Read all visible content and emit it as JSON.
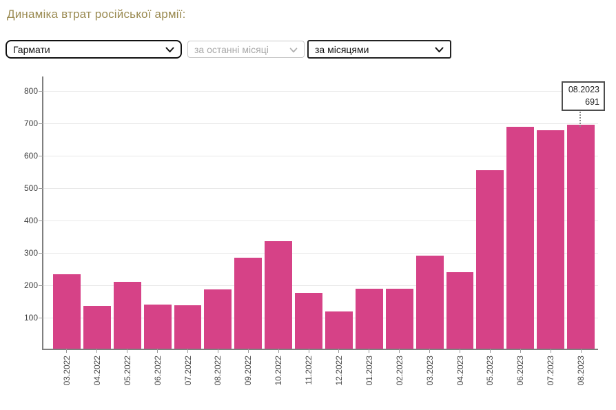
{
  "header": {
    "title": "Динаміка втрат російської армії:",
    "title_color": "#9a8a51"
  },
  "controls": {
    "category_select": {
      "value": "Гармати",
      "disabled": false
    },
    "period_select": {
      "value": "за останні місяці",
      "disabled": true
    },
    "grouping_select": {
      "value": "за місяцями",
      "disabled": false
    }
  },
  "chart_data": {
    "type": "bar",
    "title": "Динаміка втрат російської армії (Гармати, за місяцями)",
    "categories": [
      "03.2022",
      "04.2022",
      "05.2022",
      "06.2022",
      "07.2022",
      "08.2022",
      "09.2022",
      "10.2022",
      "11.2022",
      "12.2022",
      "01.2023",
      "02.2023",
      "03.2023",
      "04.2023",
      "05.2023",
      "06.2023",
      "07.2023",
      "08.2023"
    ],
    "values": [
      231,
      133,
      206,
      136,
      135,
      183,
      281,
      333,
      172,
      114,
      186,
      185,
      288,
      236,
      552,
      686,
      675,
      691
    ],
    "bar_color": "#d64287",
    "xlabel": "",
    "ylabel": "",
    "ylim": [
      0,
      845
    ],
    "yticks": [
      100,
      200,
      300,
      400,
      500,
      600,
      700,
      800
    ],
    "grid": true,
    "legend": false,
    "tooltip": {
      "label": "08.2023",
      "value": "691",
      "target_index": 17
    }
  }
}
